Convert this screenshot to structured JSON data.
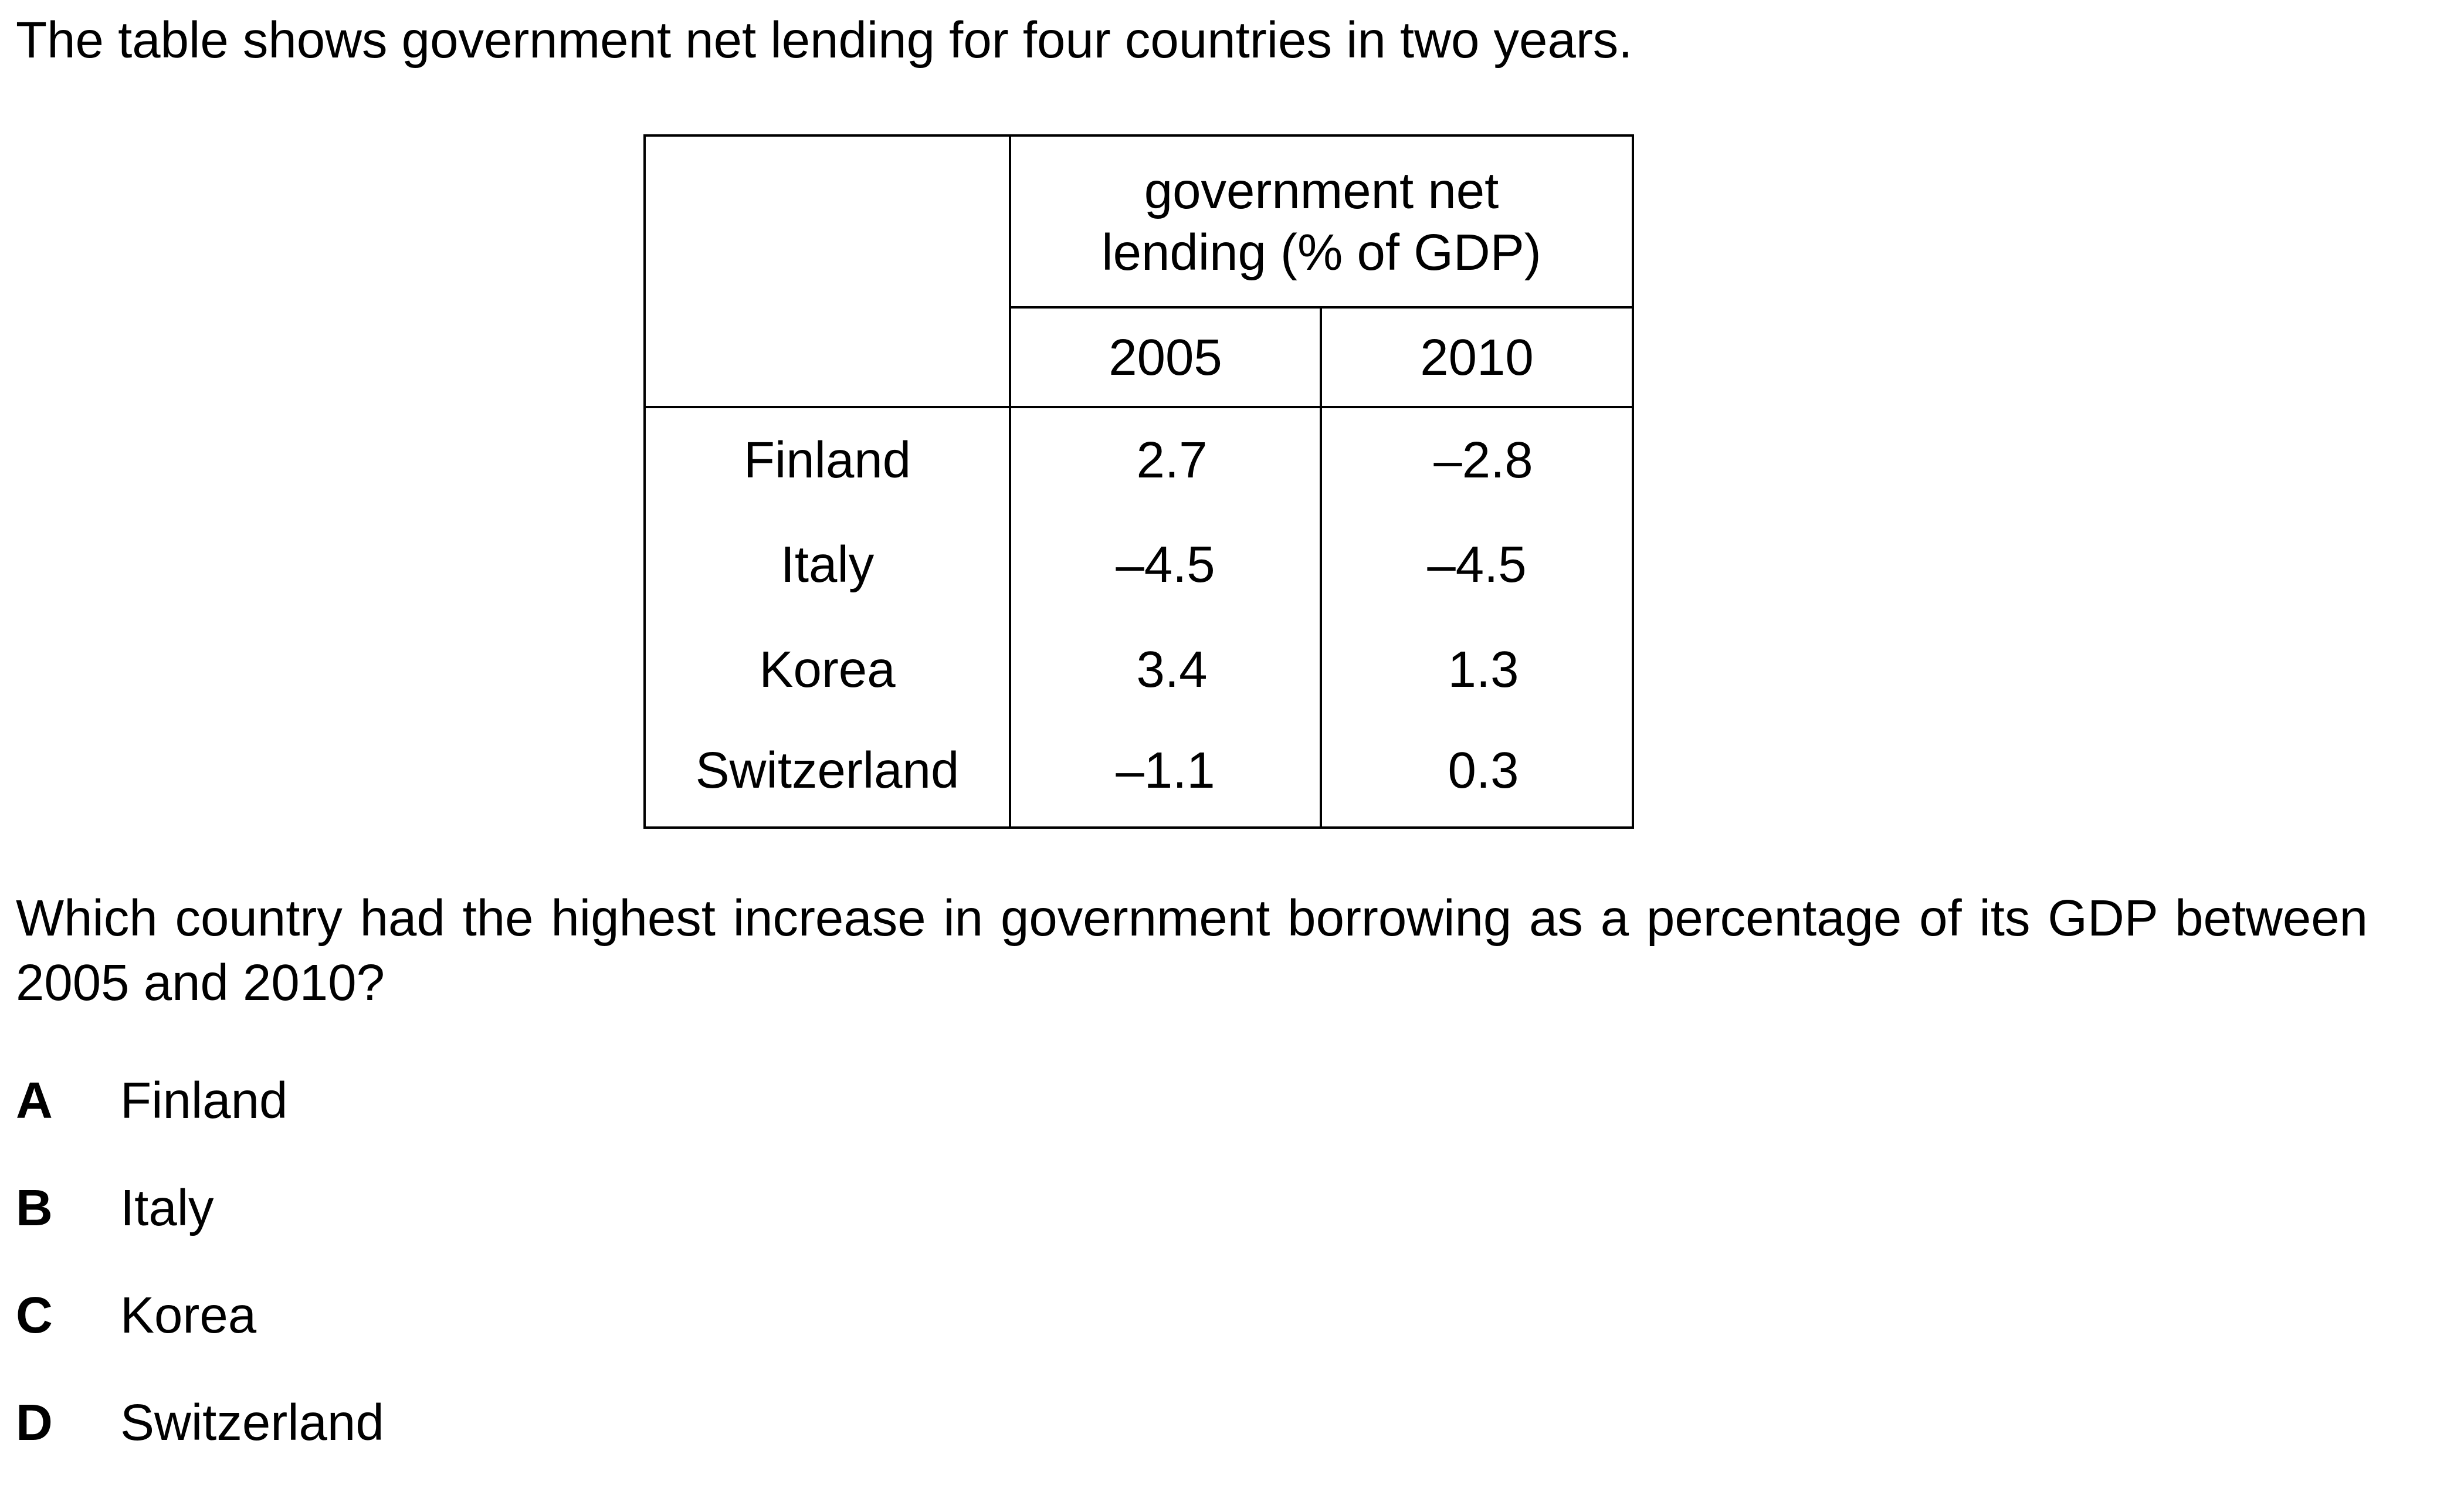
{
  "intro": "The table shows government net lending for four countries in two years.",
  "table": {
    "group_header": "government net lending (% of GDP)",
    "group_header_line1": "government net",
    "group_header_line2": "lending (% of GDP)",
    "years": [
      "2005",
      "2010"
    ],
    "rows": [
      {
        "country": "Finland",
        "y2005": "2.7",
        "y2010": "–2.8"
      },
      {
        "country": "Italy",
        "y2005": "–4.5",
        "y2010": "–4.5"
      },
      {
        "country": "Korea",
        "y2005": "3.4",
        "y2010": "1.3"
      },
      {
        "country": "Switzerland",
        "y2005": "–1.1",
        "y2010": "0.3"
      }
    ]
  },
  "question": "Which country had the highest increase in government borrowing as a percentage of its GDP between 2005 and 2010?",
  "options": [
    {
      "letter": "A",
      "text": "Finland"
    },
    {
      "letter": "B",
      "text": "Italy"
    },
    {
      "letter": "C",
      "text": "Korea"
    },
    {
      "letter": "D",
      "text": "Switzerland"
    }
  ]
}
